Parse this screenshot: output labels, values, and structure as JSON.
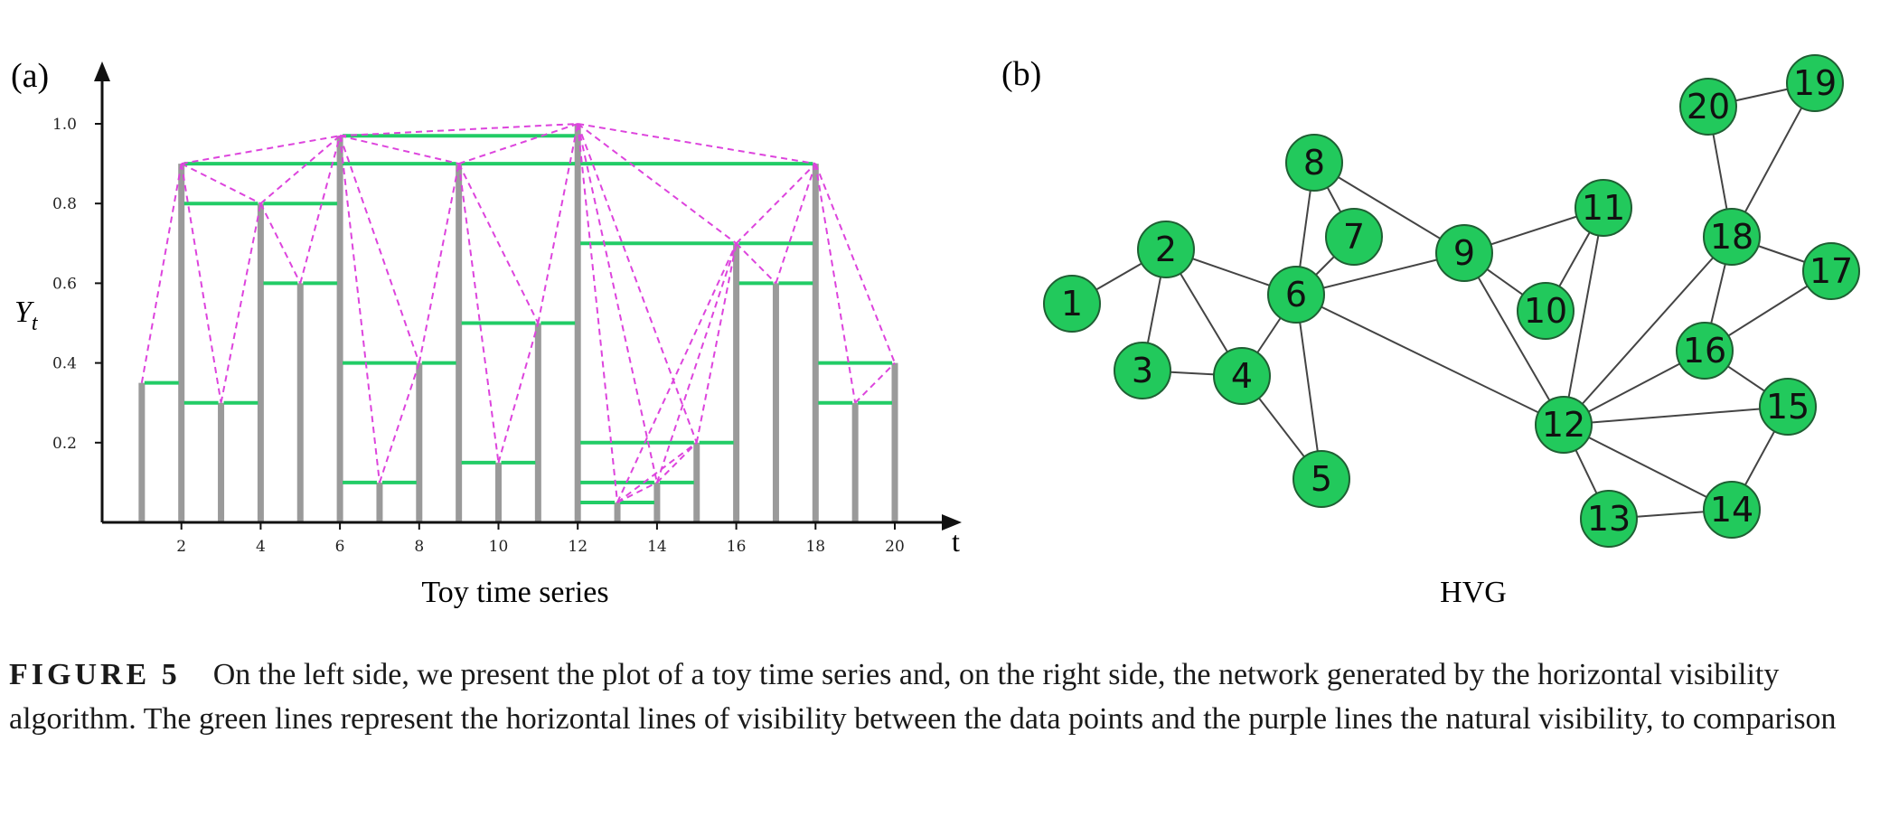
{
  "panel_a": {
    "label": "(a)",
    "xlabel": "t",
    "ylabel": "Y",
    "ylabel_sub": "t",
    "caption": "Toy time series"
  },
  "panel_b": {
    "label": "(b)",
    "caption": "HVG"
  },
  "caption": {
    "label": "FIGURE 5",
    "text": "On the left side, we present the plot of a toy time series and, on the right side, the network generated by the horizontal visibility algorithm. The green lines represent the horizontal lines of visibility between the data points and the purple lines the natural visibility, to comparison"
  },
  "colors": {
    "bar": "#9a9a9a",
    "hvg_line": "#22cc66",
    "nvg_line": "#dd44dd",
    "node_fill": "#22c95c",
    "node_stroke": "#1f5f33",
    "edge": "#444444"
  },
  "chart_data": [
    {
      "type": "bar",
      "x": [
        1,
        2,
        3,
        4,
        5,
        6,
        7,
        8,
        9,
        10,
        11,
        12,
        13,
        14,
        15,
        16,
        17,
        18,
        19,
        20
      ],
      "values": [
        0.35,
        0.9,
        0.3,
        0.8,
        0.6,
        0.97,
        0.1,
        0.4,
        0.9,
        0.15,
        0.5,
        1.0,
        0.05,
        0.1,
        0.2,
        0.7,
        0.6,
        0.9,
        0.3,
        0.4
      ],
      "x_ticks": [
        2,
        4,
        6,
        8,
        10,
        12,
        14,
        16,
        18,
        20
      ],
      "y_ticks": [
        0.2,
        0.4,
        0.6,
        0.8,
        1.0
      ],
      "xlim": [
        0,
        21
      ],
      "ylim": [
        0,
        1.1
      ],
      "hvg_edges": [
        [
          1,
          2
        ],
        [
          2,
          3
        ],
        [
          2,
          4
        ],
        [
          2,
          6
        ],
        [
          3,
          4
        ],
        [
          4,
          5
        ],
        [
          4,
          6
        ],
        [
          5,
          6
        ],
        [
          6,
          7
        ],
        [
          6,
          8
        ],
        [
          6,
          9
        ],
        [
          6,
          12
        ],
        [
          7,
          8
        ],
        [
          8,
          9
        ],
        [
          9,
          10
        ],
        [
          9,
          11
        ],
        [
          9,
          12
        ],
        [
          10,
          11
        ],
        [
          11,
          12
        ],
        [
          12,
          13
        ],
        [
          12,
          14
        ],
        [
          12,
          15
        ],
        [
          12,
          16
        ],
        [
          12,
          18
        ],
        [
          13,
          14
        ],
        [
          14,
          15
        ],
        [
          15,
          16
        ],
        [
          16,
          17
        ],
        [
          16,
          18
        ],
        [
          17,
          18
        ],
        [
          18,
          19
        ],
        [
          18,
          20
        ],
        [
          19,
          20
        ]
      ],
      "nvg_edges": [
        [
          1,
          2
        ],
        [
          2,
          3
        ],
        [
          2,
          4
        ],
        [
          2,
          6
        ],
        [
          3,
          4
        ],
        [
          4,
          5
        ],
        [
          4,
          6
        ],
        [
          5,
          6
        ],
        [
          6,
          7
        ],
        [
          6,
          8
        ],
        [
          6,
          9
        ],
        [
          6,
          12
        ],
        [
          7,
          8
        ],
        [
          8,
          9
        ],
        [
          9,
          10
        ],
        [
          9,
          11
        ],
        [
          9,
          12
        ],
        [
          10,
          11
        ],
        [
          11,
          12
        ],
        [
          12,
          13
        ],
        [
          12,
          14
        ],
        [
          12,
          15
        ],
        [
          12,
          16
        ],
        [
          12,
          18
        ],
        [
          13,
          14
        ],
        [
          13,
          15
        ],
        [
          13,
          16
        ],
        [
          14,
          15
        ],
        [
          14,
          16
        ],
        [
          15,
          16
        ],
        [
          16,
          17
        ],
        [
          16,
          18
        ],
        [
          17,
          18
        ],
        [
          18,
          19
        ],
        [
          18,
          20
        ],
        [
          19,
          20
        ]
      ]
    }
  ],
  "network": {
    "nodes": [
      "1",
      "2",
      "3",
      "4",
      "5",
      "6",
      "7",
      "8",
      "9",
      "10",
      "11",
      "12",
      "13",
      "14",
      "15",
      "16",
      "17",
      "18",
      "19",
      "20"
    ],
    "edges": [
      [
        1,
        2
      ],
      [
        2,
        3
      ],
      [
        2,
        4
      ],
      [
        2,
        6
      ],
      [
        3,
        4
      ],
      [
        4,
        5
      ],
      [
        4,
        6
      ],
      [
        5,
        6
      ],
      [
        6,
        7
      ],
      [
        6,
        8
      ],
      [
        6,
        9
      ],
      [
        6,
        12
      ],
      [
        7,
        8
      ],
      [
        8,
        9
      ],
      [
        9,
        10
      ],
      [
        9,
        11
      ],
      [
        9,
        12
      ],
      [
        10,
        11
      ],
      [
        11,
        12
      ],
      [
        12,
        13
      ],
      [
        12,
        14
      ],
      [
        12,
        15
      ],
      [
        12,
        16
      ],
      [
        12,
        18
      ],
      [
        13,
        14
      ],
      [
        14,
        15
      ],
      [
        15,
        16
      ],
      [
        16,
        17
      ],
      [
        16,
        18
      ],
      [
        17,
        18
      ],
      [
        18,
        19
      ],
      [
        18,
        20
      ],
      [
        19,
        20
      ]
    ]
  }
}
